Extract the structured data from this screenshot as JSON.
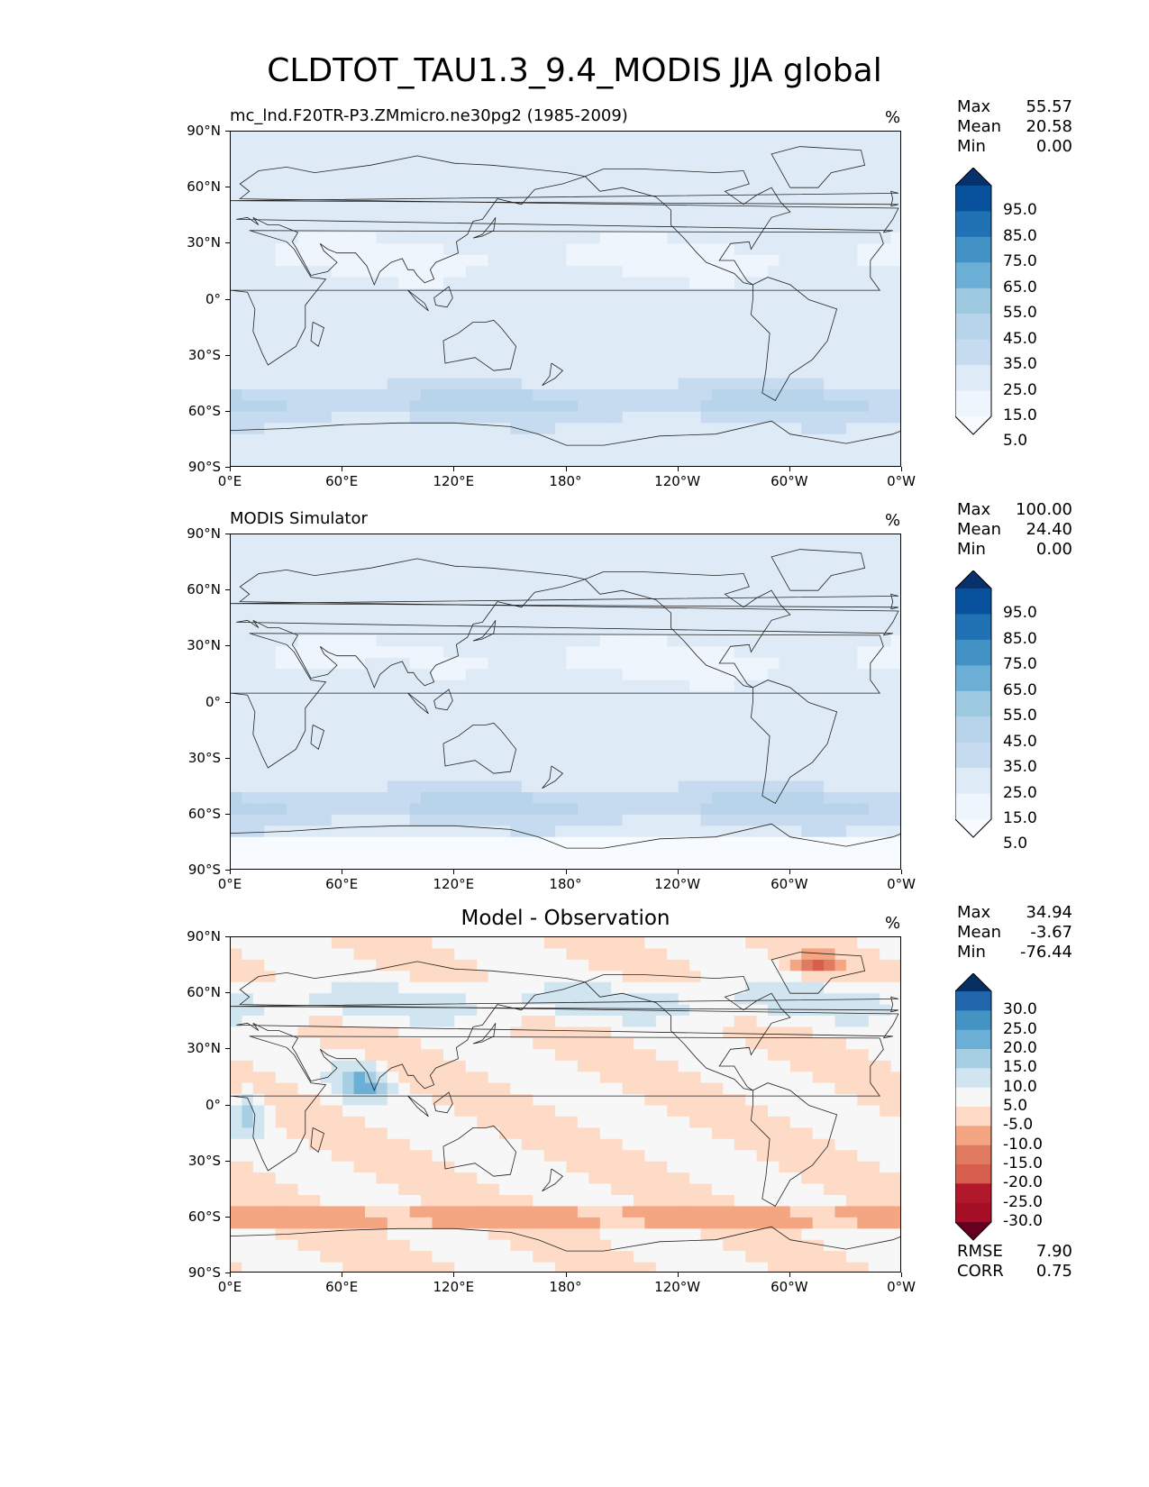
{
  "title": "CLDTOT_TAU1.3_9.4_MODIS JJA global",
  "axes": {
    "y_ticks": [
      "90°N",
      "60°N",
      "30°N",
      "0°",
      "30°S",
      "60°S",
      "90°S"
    ],
    "x_ticks": [
      "0°E",
      "60°E",
      "120°E",
      "180°",
      "120°W",
      "60°W",
      "0°W"
    ]
  },
  "panels": [
    {
      "title": "mc_lnd.F20TR-P3.ZMmicro.ne30pg2 (1985-2009)",
      "title_style": "left",
      "unit": "%",
      "stats": {
        "max_label": "Max",
        "max": "55.57",
        "mean_label": "Mean",
        "mean": "20.58",
        "min_label": "Min",
        "min": "0.00"
      },
      "colorbar": {
        "labels": [
          "95.0",
          "85.0",
          "75.0",
          "65.0",
          "55.0",
          "45.0",
          "35.0",
          "25.0",
          "15.0",
          "5.0"
        ],
        "colors": [
          "#08306b",
          "#08519c",
          "#2171b5",
          "#4292c6",
          "#6baed6",
          "#9ecae1",
          "#b7d4ea",
          "#c6dbef",
          "#deebf7",
          "#eef5fc",
          "#f7fbff"
        ]
      }
    },
    {
      "title": "MODIS Simulator",
      "title_style": "left",
      "unit": "%",
      "stats": {
        "max_label": "Max",
        "max": "100.00",
        "mean_label": "Mean",
        "mean": "24.40",
        "min_label": "Min",
        "min": "0.00"
      },
      "colorbar": {
        "labels": [
          "95.0",
          "85.0",
          "75.0",
          "65.0",
          "55.0",
          "45.0",
          "35.0",
          "25.0",
          "15.0",
          "5.0"
        ],
        "colors": [
          "#08306b",
          "#08519c",
          "#2171b5",
          "#4292c6",
          "#6baed6",
          "#9ecae1",
          "#b7d4ea",
          "#c6dbef",
          "#deebf7",
          "#eef5fc",
          "#f7fbff"
        ]
      }
    },
    {
      "title": "Model - Observation",
      "title_style": "center",
      "unit": "%",
      "stats": {
        "max_label": "Max",
        "max": "34.94",
        "mean_label": "Mean",
        "mean": "-3.67",
        "min_label": "Min",
        "min": "-76.44"
      },
      "colorbar": {
        "labels": [
          "30.0",
          "25.0",
          "20.0",
          "15.0",
          "10.0",
          "5.0",
          "-5.0",
          "-10.0",
          "-15.0",
          "-20.0",
          "-25.0",
          "-30.0"
        ],
        "colors": [
          "#053061",
          "#2166ac",
          "#4393c3",
          "#6baed6",
          "#a6cfe3",
          "#d1e5f0",
          "#f7f7f7",
          "#fddbc7",
          "#f4a582",
          "#e07b62",
          "#d6604d",
          "#b2182b",
          "#a50f26",
          "#67001f"
        ]
      },
      "metrics": {
        "rmse_label": "RMSE",
        "rmse": "7.90",
        "corr_label": "CORR",
        "corr": "0.75"
      }
    }
  ]
}
